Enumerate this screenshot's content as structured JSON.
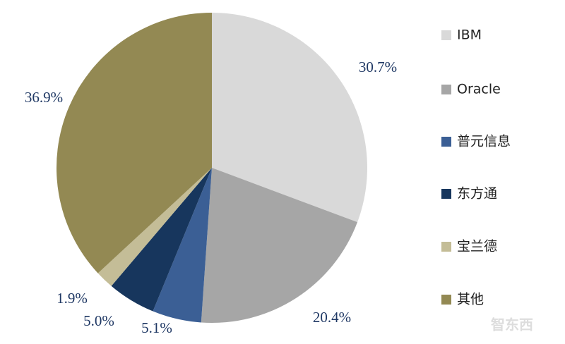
{
  "chart_data": {
    "type": "pie",
    "categories": [
      "IBM",
      "Oracle",
      "普元信息",
      "东方通",
      "宝兰德",
      "其他"
    ],
    "values": [
      30.7,
      20.4,
      5.1,
      5.0,
      1.9,
      36.9
    ],
    "value_labels": [
      "30.7%",
      "20.4%",
      "5.1%",
      "5.0%",
      "1.9%",
      "36.9%"
    ],
    "colors": [
      "#d9d9d9",
      "#a6a6a6",
      "#3b5f95",
      "#17365d",
      "#c4bd97",
      "#938953"
    ],
    "legend": "right"
  },
  "watermark": "智东西"
}
